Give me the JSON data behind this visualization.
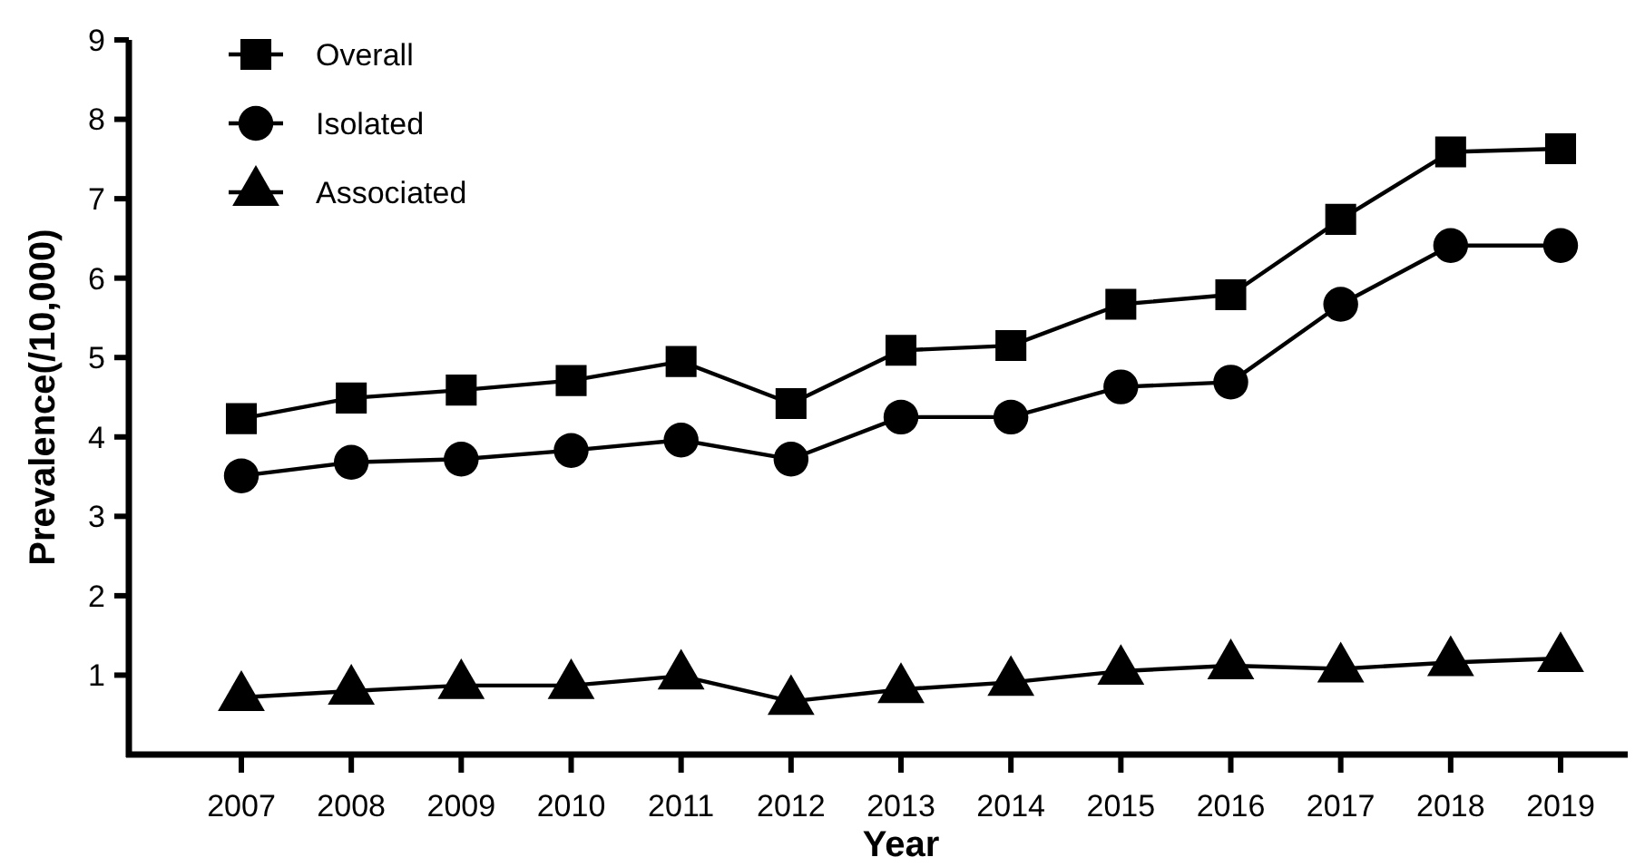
{
  "chart_data": {
    "type": "line",
    "xlabel": "Year",
    "ylabel": "Prevalence(/10,000)",
    "categories": [
      "2007",
      "2008",
      "2009",
      "2010",
      "2011",
      "2012",
      "2013",
      "2014",
      "2015",
      "2016",
      "2017",
      "2018",
      "2019"
    ],
    "ylim": [
      0,
      9
    ],
    "yticks": [
      1,
      2,
      3,
      4,
      5,
      6,
      7,
      8,
      9
    ],
    "grid": false,
    "legend": "top left",
    "line_style": "solid",
    "series": [
      {
        "name": "Overall",
        "color": "#000000",
        "marker": "square",
        "values": [
          4.23,
          4.49,
          4.59,
          4.71,
          4.95,
          4.42,
          5.09,
          5.15,
          5.67,
          5.79,
          6.74,
          7.59,
          7.63
        ]
      },
      {
        "name": "Isolated",
        "color": "#000000",
        "marker": "circle",
        "values": [
          3.51,
          3.68,
          3.72,
          3.83,
          3.96,
          3.72,
          4.25,
          4.25,
          4.63,
          4.69,
          5.67,
          6.41,
          6.41
        ]
      },
      {
        "name": "Associated",
        "color": "#000000",
        "marker": "triangle",
        "values": [
          0.72,
          0.8,
          0.87,
          0.87,
          0.99,
          0.67,
          0.82,
          0.91,
          1.05,
          1.12,
          1.08,
          1.16,
          1.21
        ]
      }
    ]
  }
}
